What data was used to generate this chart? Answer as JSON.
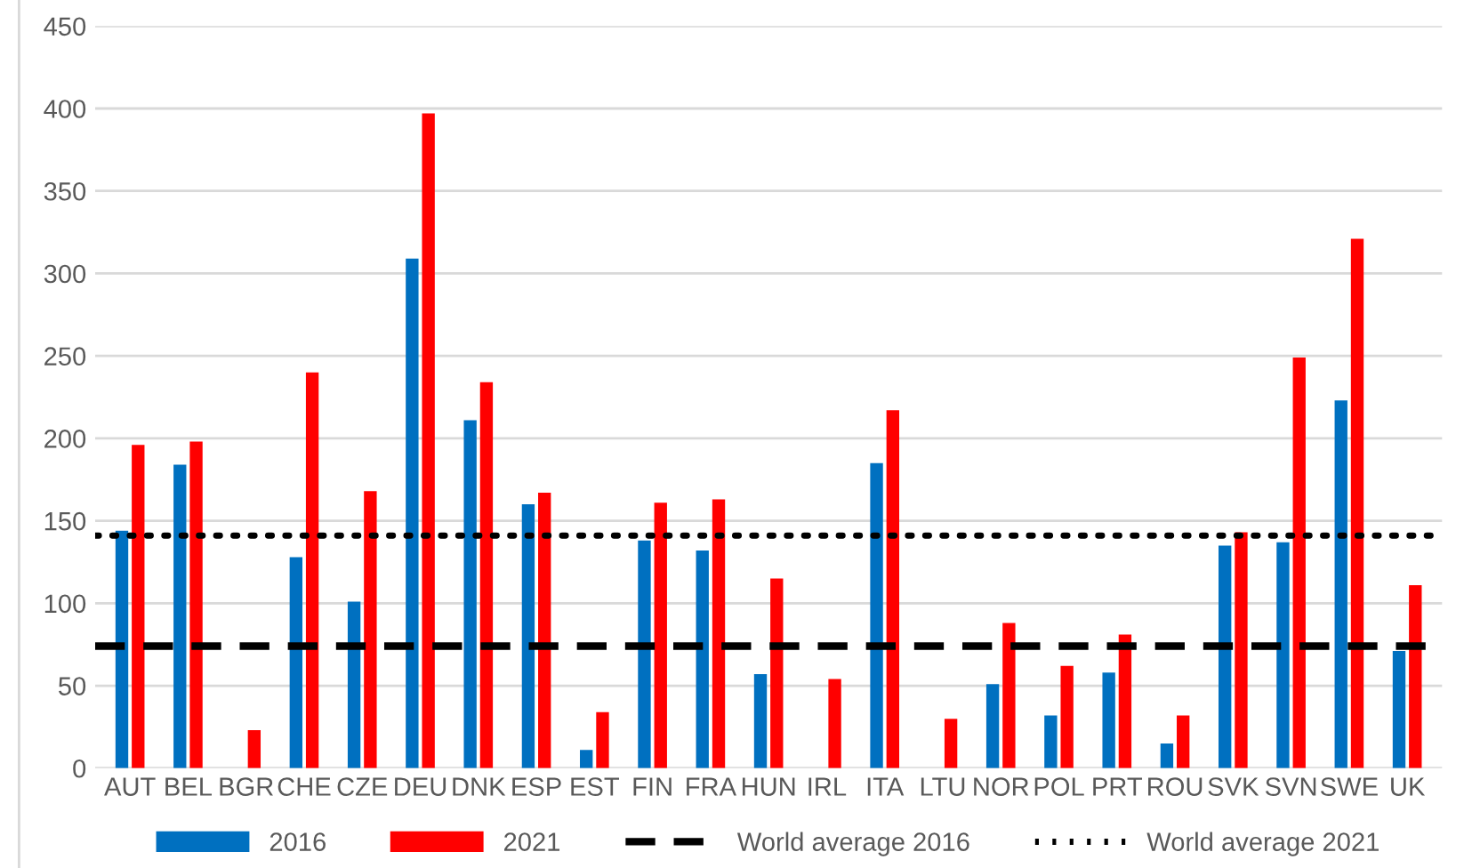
{
  "chart_data": {
    "type": "bar",
    "categories": [
      "AUT",
      "BEL",
      "BGR",
      "CHE",
      "CZE",
      "DEU",
      "DNK",
      "ESP",
      "EST",
      "FIN",
      "FRA",
      "HUN",
      "IRL",
      "ITA",
      "LTU",
      "NOR",
      "POL",
      "PRT",
      "ROU",
      "SVK",
      "SVN",
      "SWE",
      "UK"
    ],
    "series": [
      {
        "name": "2016",
        "color": "#0070c0",
        "values": [
          144,
          184,
          null,
          128,
          101,
          309,
          211,
          160,
          11,
          138,
          132,
          57,
          null,
          185,
          null,
          51,
          32,
          58,
          15,
          135,
          137,
          223,
          71
        ]
      },
      {
        "name": "2021",
        "color": "#ff0000",
        "values": [
          196,
          198,
          23,
          240,
          168,
          397,
          234,
          167,
          34,
          161,
          163,
          115,
          54,
          217,
          30,
          88,
          62,
          81,
          32,
          143,
          249,
          321,
          111
        ]
      }
    ],
    "ref_lines": [
      {
        "axis": "y",
        "value": 74,
        "label": "World average 2016",
        "color": "#000000",
        "line_style": "dashed"
      },
      {
        "axis": "y",
        "value": 141,
        "label": "World average 2021",
        "color": "#000000",
        "line_style": "dotted"
      }
    ],
    "ylim": [
      0,
      450
    ],
    "yticks": [
      0,
      50,
      100,
      150,
      200,
      250,
      300,
      350,
      400,
      450
    ],
    "grid": "y",
    "legend": "bottom"
  }
}
